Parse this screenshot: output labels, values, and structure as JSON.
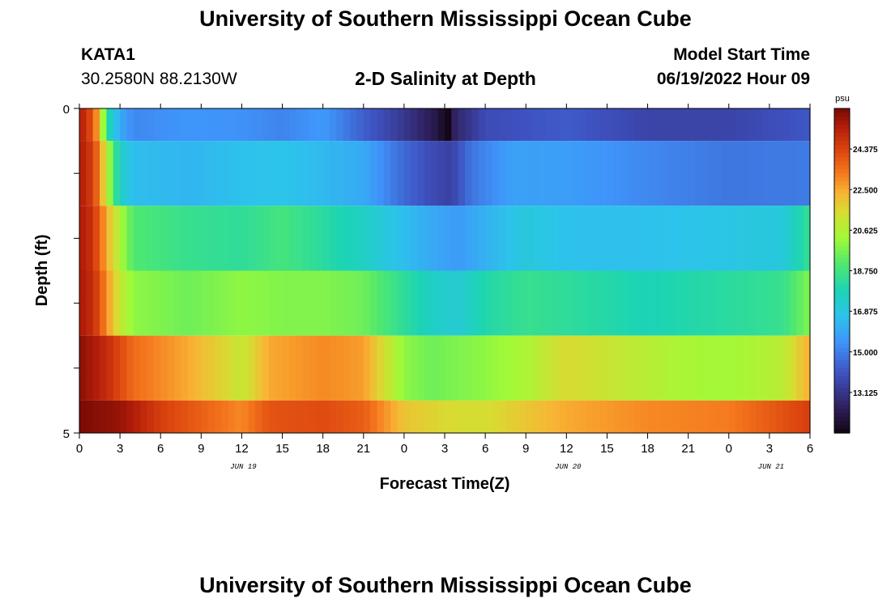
{
  "header": {
    "title": "University of Southern Mississippi Ocean Cube",
    "station": "KATA1",
    "coords": "30.2580N  88.2130W",
    "subtitle": "2-D Salinity at Depth",
    "start_label": "Model Start Time",
    "start_value": "06/19/2022 Hour 09"
  },
  "footer": {
    "title": "University of Southern Mississippi Ocean Cube"
  },
  "chart_data": {
    "type": "heatmap",
    "title": "2-D Salinity at Depth",
    "xlabel": "Forecast Time(Z)",
    "ylabel": "Depth (ft)",
    "x_range_hours": [
      0,
      54
    ],
    "y_range": [
      0,
      5
    ],
    "x_ticks": [
      "0",
      "3",
      "6",
      "9",
      "12",
      "15",
      "18",
      "21",
      "0",
      "3",
      "6",
      "9",
      "12",
      "15",
      "18",
      "21",
      "0",
      "3",
      "6"
    ],
    "y_ticks": [
      "0",
      "5"
    ],
    "date_labels": [
      {
        "text": "JUN 19",
        "hour": 12
      },
      {
        "text": "JUN 20",
        "hour": 36
      },
      {
        "text": "JUN 21",
        "hour": 51
      }
    ],
    "colorbar": {
      "unit": "psu",
      "range": [
        11.25,
        26.25
      ],
      "tick_labels": [
        "24.375",
        "22.500",
        "20.625",
        "18.750",
        "16.875",
        "15.000",
        "13.125"
      ],
      "tick_values": [
        24.375,
        22.5,
        20.625,
        18.75,
        16.875,
        15.0,
        13.125
      ]
    },
    "layers": [
      {
        "depth_top": 0,
        "depth_bottom": 0.5,
        "keyframes": [
          [
            0,
            25.5
          ],
          [
            1,
            24
          ],
          [
            1.5,
            22
          ],
          [
            2,
            18.5
          ],
          [
            2.5,
            17
          ],
          [
            3,
            16
          ],
          [
            4,
            15.2
          ],
          [
            8,
            15.5
          ],
          [
            12,
            15.4
          ],
          [
            15,
            15.1
          ],
          [
            18,
            15.6
          ],
          [
            21,
            14.3
          ],
          [
            24,
            13.2
          ],
          [
            26,
            12.3
          ],
          [
            27.3,
            11.3
          ],
          [
            27.8,
            12.6
          ],
          [
            30,
            13.8
          ],
          [
            36,
            14.2
          ],
          [
            42,
            13.6
          ],
          [
            48,
            13.6
          ],
          [
            54,
            14.1
          ]
        ]
      },
      {
        "depth_top": 0.5,
        "depth_bottom": 1.5,
        "keyframes": [
          [
            0,
            25.5
          ],
          [
            1,
            24.5
          ],
          [
            1.5,
            23
          ],
          [
            2,
            21
          ],
          [
            2.5,
            19
          ],
          [
            3,
            17.5
          ],
          [
            4,
            16.5
          ],
          [
            8,
            16.3
          ],
          [
            12,
            16.6
          ],
          [
            15,
            16.7
          ],
          [
            18,
            16.4
          ],
          [
            21,
            16
          ],
          [
            24,
            14.5
          ],
          [
            26,
            13.8
          ],
          [
            27.5,
            13.5
          ],
          [
            29,
            14.8
          ],
          [
            32,
            15.8
          ],
          [
            36,
            15.7
          ],
          [
            42,
            15.2
          ],
          [
            48,
            14.8
          ],
          [
            54,
            14.9
          ]
        ]
      },
      {
        "depth_top": 1.5,
        "depth_bottom": 2.5,
        "keyframes": [
          [
            0,
            25.5
          ],
          [
            1,
            24.8
          ],
          [
            2,
            22.5
          ],
          [
            3,
            20.5
          ],
          [
            4,
            19
          ],
          [
            8,
            18.5
          ],
          [
            12,
            18.3
          ],
          [
            15,
            18.8
          ],
          [
            18,
            18.2
          ],
          [
            21,
            17.5
          ],
          [
            24,
            16.5
          ],
          [
            26,
            16
          ],
          [
            28,
            15.6
          ],
          [
            30,
            16.2
          ],
          [
            33,
            17
          ],
          [
            36,
            16.6
          ],
          [
            42,
            16.6
          ],
          [
            48,
            16.8
          ],
          [
            52,
            17
          ],
          [
            54,
            18.5
          ]
        ]
      },
      {
        "depth_top": 2.5,
        "depth_bottom": 3.5,
        "keyframes": [
          [
            0,
            25.5
          ],
          [
            1,
            25
          ],
          [
            2,
            23
          ],
          [
            3,
            21
          ],
          [
            4,
            20
          ],
          [
            8,
            19.5
          ],
          [
            12,
            20
          ],
          [
            15,
            19.8
          ],
          [
            18,
            19.8
          ],
          [
            21,
            19.5
          ],
          [
            24,
            18.3
          ],
          [
            26,
            17.5
          ],
          [
            28,
            17.2
          ],
          [
            30,
            18
          ],
          [
            33,
            18.5
          ],
          [
            36,
            18.3
          ],
          [
            42,
            17.8
          ],
          [
            48,
            18.2
          ],
          [
            52,
            18.5
          ],
          [
            54,
            19.8
          ]
        ]
      },
      {
        "depth_top": 3.5,
        "depth_bottom": 4.5,
        "keyframes": [
          [
            0,
            26
          ],
          [
            2,
            25
          ],
          [
            4,
            23.5
          ],
          [
            8,
            22.5
          ],
          [
            11,
            21.5
          ],
          [
            12,
            21
          ],
          [
            14,
            22.5
          ],
          [
            18,
            23
          ],
          [
            21,
            22.7
          ],
          [
            24,
            20
          ],
          [
            26,
            19.5
          ],
          [
            30,
            20
          ],
          [
            33,
            20.5
          ],
          [
            36,
            21.5
          ],
          [
            40,
            21
          ],
          [
            44,
            20.5
          ],
          [
            48,
            20.3
          ],
          [
            52,
            20.8
          ],
          [
            54,
            22.5
          ]
        ]
      },
      {
        "depth_top": 4.5,
        "depth_bottom": 5,
        "keyframes": [
          [
            0,
            26.2
          ],
          [
            3,
            25.8
          ],
          [
            6,
            24.5
          ],
          [
            10,
            23.5
          ],
          [
            12,
            23
          ],
          [
            14,
            24
          ],
          [
            18,
            24.2
          ],
          [
            21,
            23.8
          ],
          [
            24,
            22
          ],
          [
            27,
            21.5
          ],
          [
            30,
            21.4
          ],
          [
            36,
            22.5
          ],
          [
            42,
            23
          ],
          [
            48,
            23.2
          ],
          [
            54,
            24.5
          ]
        ]
      }
    ]
  }
}
